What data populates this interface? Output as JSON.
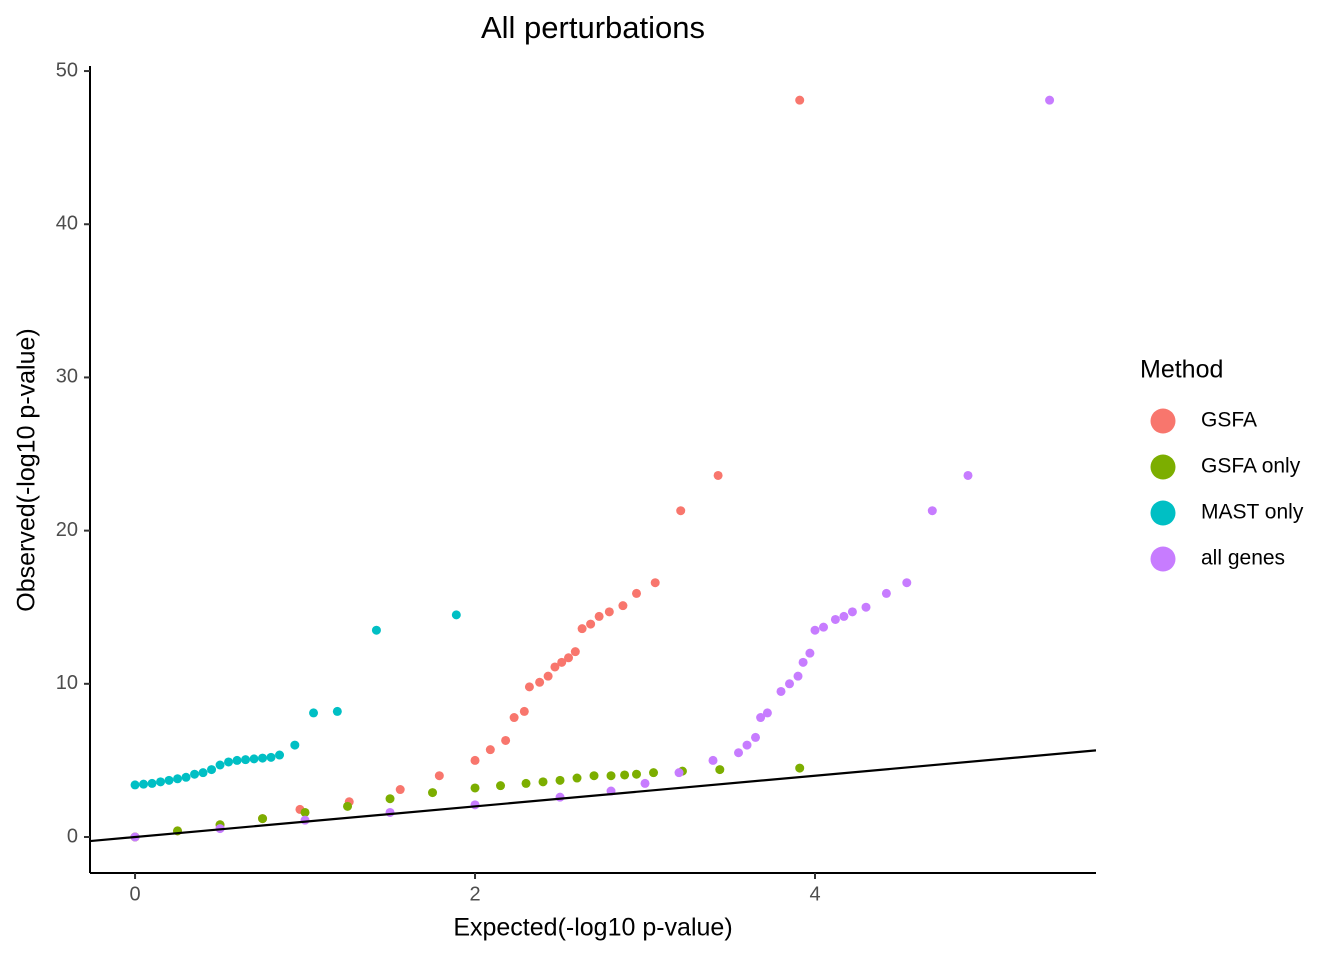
{
  "chart_data": {
    "type": "scatter",
    "title": "All perturbations",
    "x_label": "Expected(-log10 p-value)",
    "y_label": "Observed(-log10 p-value)",
    "legend_title": "Method",
    "legend_position": "right",
    "grid": false,
    "xlim": [
      -0.265,
      5.653
    ],
    "ylim": [
      -2.35,
      50.33
    ],
    "xticks": [
      0,
      2,
      4
    ],
    "yticks": [
      0,
      10,
      20,
      30,
      40,
      50
    ],
    "reference_line": {
      "slope": 1,
      "intercept": 0,
      "color": "#000000"
    },
    "series": [
      {
        "name": "GSFA",
        "color": "#F8766D",
        "x": [
          0,
          0.25,
          0.5,
          0.75,
          0.97,
          1.26,
          1.56,
          1.79,
          2.0,
          2.09,
          2.18,
          2.23,
          2.29,
          2.32,
          2.38,
          2.43,
          2.47,
          2.51,
          2.55,
          2.59,
          2.63,
          2.68,
          2.73,
          2.79,
          2.87,
          2.95,
          3.06,
          3.21,
          3.43,
          3.91
        ],
        "values": [
          0,
          0.4,
          0.8,
          1.2,
          1.8,
          2.3,
          3.1,
          4.0,
          5.0,
          5.7,
          6.3,
          7.8,
          8.2,
          9.8,
          10.1,
          10.5,
          11.1,
          11.4,
          11.7,
          12.1,
          13.6,
          13.9,
          14.4,
          14.7,
          15.1,
          15.9,
          16.6,
          21.3,
          23.6,
          48.1
        ]
      },
      {
        "name": "GSFA only",
        "color": "#7CAE00",
        "x": [
          0,
          0.25,
          0.5,
          0.75,
          1.0,
          1.25,
          1.5,
          1.75,
          2.0,
          2.15,
          2.3,
          2.4,
          2.5,
          2.6,
          2.7,
          2.8,
          2.88,
          2.95,
          3.05,
          3.22,
          3.44,
          3.91
        ],
        "values": [
          0,
          0.4,
          0.8,
          1.2,
          1.6,
          2.0,
          2.5,
          2.9,
          3.2,
          3.35,
          3.5,
          3.6,
          3.7,
          3.85,
          4.0,
          4.0,
          4.05,
          4.1,
          4.2,
          4.3,
          4.4,
          4.5
        ]
      },
      {
        "name": "MAST only",
        "color": "#00BFC4",
        "x": [
          0,
          0.05,
          0.1,
          0.15,
          0.2,
          0.25,
          0.3,
          0.35,
          0.4,
          0.45,
          0.5,
          0.55,
          0.6,
          0.65,
          0.7,
          0.75,
          0.8,
          0.85,
          0.94,
          1.05,
          1.19,
          1.42,
          1.89
        ],
        "values": [
          3.4,
          3.45,
          3.5,
          3.6,
          3.7,
          3.8,
          3.9,
          4.1,
          4.2,
          4.4,
          4.7,
          4.9,
          5.0,
          5.05,
          5.1,
          5.15,
          5.2,
          5.35,
          6.0,
          8.1,
          8.2,
          13.5,
          14.5
        ]
      },
      {
        "name": "all genes",
        "color": "#C77CFF",
        "x": [
          0,
          0.5,
          1.0,
          1.5,
          2.0,
          2.5,
          2.8,
          3.0,
          3.2,
          3.4,
          3.55,
          3.6,
          3.65,
          3.68,
          3.72,
          3.8,
          3.85,
          3.9,
          3.93,
          3.97,
          4.0,
          4.05,
          4.12,
          4.17,
          4.22,
          4.3,
          4.42,
          4.54,
          4.69,
          4.9,
          5.38
        ],
        "values": [
          0,
          0.55,
          1.1,
          1.6,
          2.1,
          2.6,
          3.0,
          3.5,
          4.2,
          5.0,
          5.5,
          6.0,
          6.5,
          7.8,
          8.1,
          9.5,
          10.0,
          10.5,
          11.4,
          12.0,
          13.5,
          13.7,
          14.2,
          14.4,
          14.7,
          15.0,
          15.9,
          16.6,
          21.3,
          23.6,
          48.1
        ]
      }
    ]
  }
}
